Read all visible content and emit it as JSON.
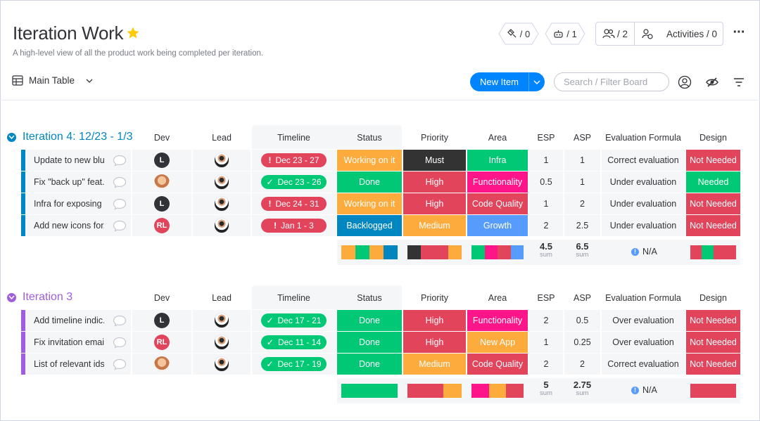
{
  "board": {
    "title": "Iteration Work",
    "description": "A high-level view of all the product work being completed per iteration."
  },
  "header": {
    "integrations_count": "/ 0",
    "automations_count": "/ 1",
    "members_count": "/ 2",
    "activities_label": "Activities / 0"
  },
  "toolbar": {
    "view_label": "Main Table",
    "new_item_label": "New Item",
    "search_placeholder": "Search / Filter Board"
  },
  "columns": [
    "Dev",
    "Lead",
    "Timeline",
    "Status",
    "Priority",
    "Area",
    "ESP",
    "ASP",
    "Evaluation Formula",
    "Design"
  ],
  "colors": {
    "working": "#fdab3d",
    "done": "#00c875",
    "stuck": "#e2445c",
    "must": "#333333",
    "backlog": "#0086c0",
    "infra": "#00c875",
    "functionality": "#ff158a",
    "code_quality": "#e2445c",
    "growth": "#579bfc",
    "new_app": "#fdab3d",
    "group1": "#0086c0",
    "group2": "#a25ddc"
  },
  "groups": [
    {
      "title": "Iteration 4: 12/23 - 1/3",
      "rows": [
        {
          "name": "Update to new blu...",
          "dev": "L",
          "timeline": "Dec 23 - 27",
          "timeline_state": "late",
          "status": "Working on it",
          "priority": "Must",
          "area": "Infra",
          "esp": "1",
          "asp": "1",
          "evaluation": "Correct evaluation",
          "design": "Not Needed"
        },
        {
          "name": "Fix \"back up\" feat...",
          "dev": "photo",
          "timeline": "Dec 23 - 26",
          "timeline_state": "done",
          "status": "Done",
          "priority": "High",
          "area": "Functionality",
          "esp": "0.5",
          "asp": "1",
          "evaluation": "Under evaluation",
          "design": "Needed"
        },
        {
          "name": "Infra for exposing ...",
          "dev": "L",
          "timeline": "Dec 24 - 31",
          "timeline_state": "late",
          "status": "Working on it",
          "priority": "High",
          "area": "Code Quality",
          "esp": "1",
          "asp": "2",
          "evaluation": "Under evaluation",
          "design": "Not Needed"
        },
        {
          "name": "Add new icons for...",
          "dev": "RL",
          "timeline": "Jan 1 - 3",
          "timeline_state": "late",
          "status": "Backlogged",
          "priority": "Medium",
          "area": "Growth",
          "esp": "2",
          "asp": "2.5",
          "evaluation": "Under evaluation",
          "design": "Not Needed"
        }
      ],
      "summary": {
        "esp_sum": "4.5",
        "asp_sum": "6.5",
        "sum_label": "sum",
        "evaluation": "N/A"
      }
    },
    {
      "title": "Iteration 3",
      "rows": [
        {
          "name": "Add timeline indic...",
          "dev": "L",
          "timeline": "Dec 17 - 21",
          "timeline_state": "done",
          "status": "Done",
          "priority": "High",
          "area": "Functionality",
          "esp": "2",
          "asp": "0.5",
          "evaluation": "Over evaluation",
          "design": "Not Needed"
        },
        {
          "name": "Fix invitation emai...",
          "dev": "RL",
          "timeline": "Dec 11 - 14",
          "timeline_state": "done",
          "status": "Done",
          "priority": "High",
          "area": "New App",
          "esp": "1",
          "asp": "0.25",
          "evaluation": "Over evaluation",
          "design": "Not Needed"
        },
        {
          "name": "List of relevant ids...",
          "dev": "photo",
          "timeline": "Dec 17 - 19",
          "timeline_state": "done",
          "status": "Done",
          "priority": "Medium",
          "area": "Code Quality",
          "esp": "2",
          "asp": "2",
          "evaluation": "Correct evaluation",
          "design": "Not Needed"
        }
      ],
      "summary": {
        "esp_sum": "5",
        "asp_sum": "2.75",
        "sum_label": "sum",
        "evaluation": "N/A"
      }
    }
  ]
}
